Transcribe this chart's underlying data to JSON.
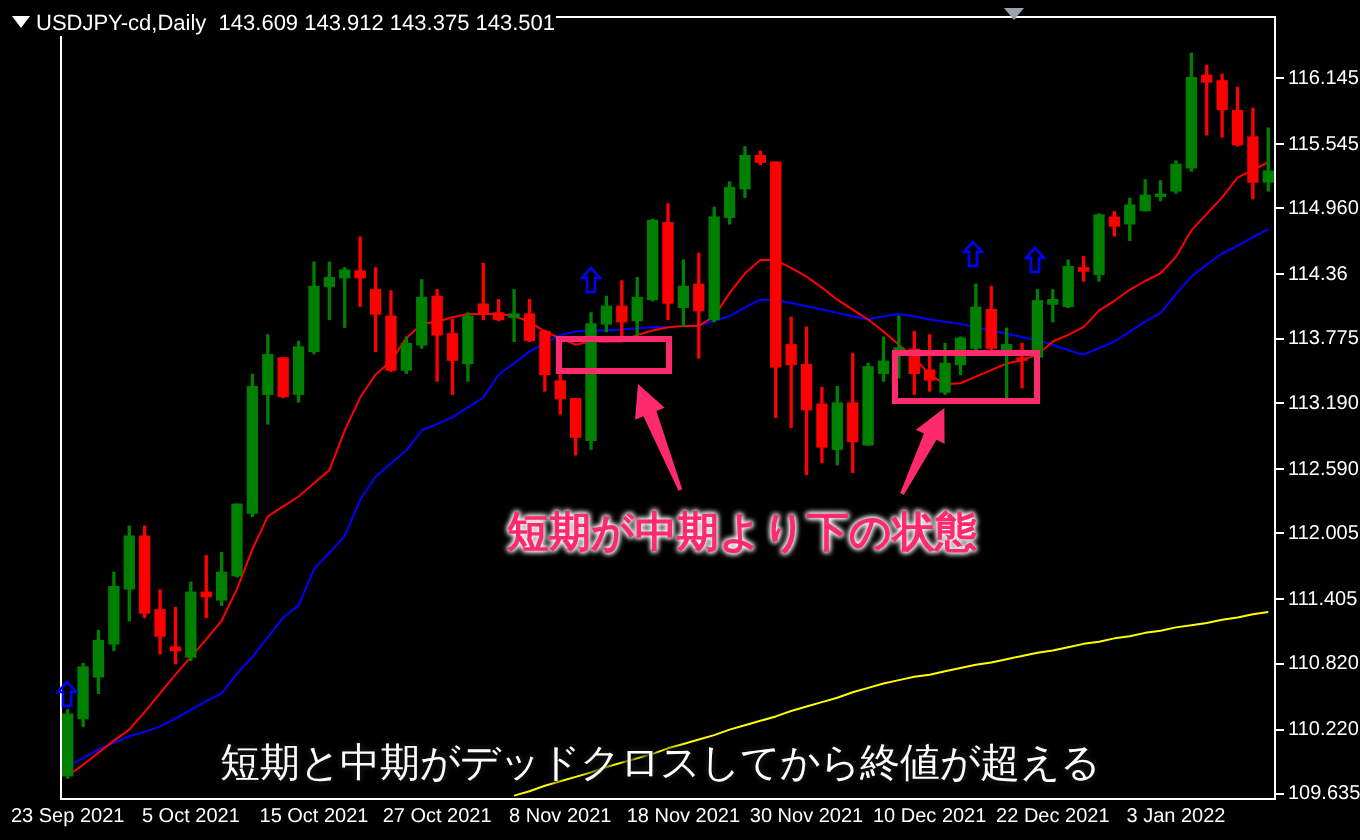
{
  "chart_data": {
    "type": "candlestick",
    "title": "USDJPY-cd,Daily  143.609 143.912 143.375 143.501",
    "annotations": [
      "短期が中期より下の状態",
      "短期と中期がデッドクロスしてから終値が超える"
    ],
    "categories": [
      "23 Sep 2021",
      null,
      null,
      null,
      null,
      null,
      null,
      null,
      "5 Oct 2021",
      null,
      null,
      null,
      null,
      null,
      null,
      null,
      "15 Oct 2021",
      null,
      null,
      null,
      null,
      null,
      null,
      null,
      "27 Oct 2021",
      null,
      null,
      null,
      null,
      null,
      null,
      null,
      "8 Nov 2021",
      null,
      null,
      null,
      null,
      null,
      null,
      null,
      "18 Nov 2021",
      null,
      null,
      null,
      null,
      null,
      null,
      null,
      "30 Nov 2021",
      null,
      null,
      null,
      null,
      null,
      null,
      null,
      "10 Dec 2021",
      null,
      null,
      null,
      null,
      null,
      null,
      null,
      "22 Dec 2021",
      null,
      null,
      null,
      null,
      null,
      null,
      null,
      "3 Jan 2022",
      null,
      null,
      null,
      null,
      null,
      null
    ],
    "ohlc": [
      [
        109.8,
        110.4,
        109.78,
        110.36
      ],
      [
        110.32,
        110.82,
        110.25,
        110.79
      ],
      [
        110.7,
        111.12,
        110.55,
        111.03
      ],
      [
        111.0,
        111.65,
        110.94,
        111.52
      ],
      [
        111.5,
        112.07,
        111.21,
        111.98
      ],
      [
        111.98,
        112.07,
        111.24,
        111.28
      ],
      [
        111.31,
        111.49,
        110.91,
        111.07
      ],
      [
        110.97,
        111.33,
        110.82,
        110.94
      ],
      [
        110.88,
        111.56,
        110.85,
        111.47
      ],
      [
        111.47,
        111.8,
        111.24,
        111.43
      ],
      [
        111.4,
        111.83,
        111.35,
        111.65
      ],
      [
        111.62,
        112.27,
        111.61,
        112.27
      ],
      [
        112.19,
        113.45,
        112.16,
        113.34
      ],
      [
        113.27,
        113.81,
        113.0,
        113.63
      ],
      [
        113.6,
        113.6,
        113.24,
        113.25
      ],
      [
        113.27,
        113.75,
        113.2,
        113.7
      ],
      [
        113.66,
        114.47,
        113.64,
        114.25
      ],
      [
        114.25,
        114.47,
        113.95,
        114.33
      ],
      [
        114.33,
        114.42,
        113.88,
        114.4
      ],
      [
        114.39,
        114.7,
        114.07,
        114.33
      ],
      [
        114.22,
        114.42,
        113.66,
        114.0
      ],
      [
        113.98,
        114.21,
        113.48,
        113.49
      ],
      [
        113.49,
        113.79,
        113.46,
        113.73
      ],
      [
        113.72,
        114.31,
        113.69,
        114.15
      ],
      [
        114.16,
        114.22,
        113.39,
        113.81
      ],
      [
        113.82,
        113.95,
        113.27,
        113.58
      ],
      [
        113.55,
        114.01,
        113.39,
        113.98
      ],
      [
        114.09,
        114.46,
        113.95,
        114.01
      ],
      [
        114.01,
        114.13,
        113.94,
        113.95
      ],
      [
        113.97,
        114.22,
        113.75,
        114.0
      ],
      [
        114.0,
        114.13,
        113.75,
        113.76
      ],
      [
        113.84,
        113.85,
        113.3,
        113.45
      ],
      [
        113.39,
        113.45,
        113.09,
        113.23
      ],
      [
        113.23,
        113.23,
        112.72,
        112.88
      ],
      [
        112.85,
        114.01,
        112.77,
        113.91
      ],
      [
        113.91,
        114.16,
        113.84,
        114.07
      ],
      [
        114.07,
        114.3,
        113.78,
        113.93
      ],
      [
        113.94,
        114.33,
        113.78,
        114.15
      ],
      [
        114.13,
        114.86,
        114.12,
        114.85
      ],
      [
        114.83,
        115.0,
        113.95,
        114.1
      ],
      [
        114.06,
        114.49,
        113.89,
        114.25
      ],
      [
        114.27,
        114.55,
        113.6,
        114.03
      ],
      [
        113.95,
        114.97,
        113.93,
        114.88
      ],
      [
        114.88,
        115.2,
        114.82,
        115.15
      ],
      [
        115.14,
        115.52,
        115.06,
        115.44
      ],
      [
        115.44,
        115.48,
        115.36,
        115.38
      ],
      [
        115.38,
        115.38,
        113.06,
        113.52
      ],
      [
        113.72,
        113.97,
        112.97,
        113.54
      ],
      [
        113.54,
        113.88,
        112.54,
        113.13
      ],
      [
        113.18,
        113.33,
        112.65,
        112.79
      ],
      [
        112.77,
        113.34,
        112.63,
        113.19
      ],
      [
        113.19,
        113.64,
        112.56,
        112.84
      ],
      [
        112.81,
        113.55,
        112.81,
        113.52
      ],
      [
        113.46,
        113.79,
        113.39,
        113.57
      ],
      [
        113.66,
        113.98,
        113.42,
        113.69
      ],
      [
        113.68,
        113.84,
        113.27,
        113.46
      ],
      [
        113.49,
        113.81,
        113.3,
        113.4
      ],
      [
        113.29,
        113.73,
        113.27,
        113.55
      ],
      [
        113.54,
        113.79,
        113.45,
        113.78
      ],
      [
        113.69,
        114.27,
        113.67,
        114.06
      ],
      [
        114.04,
        114.25,
        113.66,
        113.69
      ],
      [
        113.67,
        113.87,
        113.23,
        113.72
      ],
      [
        113.6,
        113.73,
        113.33,
        113.58
      ],
      [
        113.61,
        114.22,
        113.6,
        114.12
      ],
      [
        114.09,
        114.22,
        113.93,
        114.13
      ],
      [
        114.07,
        114.49,
        114.06,
        114.43
      ],
      [
        114.42,
        114.52,
        114.3,
        114.39
      ],
      [
        114.36,
        114.91,
        114.3,
        114.9
      ],
      [
        114.88,
        114.93,
        114.71,
        114.8
      ],
      [
        114.82,
        115.05,
        114.67,
        114.99
      ],
      [
        114.94,
        115.22,
        114.94,
        115.08
      ],
      [
        115.07,
        115.21,
        115.03,
        115.09
      ],
      [
        115.12,
        115.39,
        115.1,
        115.36
      ],
      [
        115.33,
        116.37,
        115.3,
        116.15
      ],
      [
        116.17,
        116.26,
        115.63,
        116.11
      ],
      [
        116.12,
        116.18,
        115.61,
        115.86
      ],
      [
        115.85,
        116.06,
        115.53,
        115.54
      ],
      [
        115.61,
        115.87,
        115.05,
        115.2
      ],
      [
        115.2,
        115.69,
        115.12,
        115.3
      ]
    ],
    "colors": [
      "#008000",
      "#008000",
      "#008000",
      "#008000",
      "#008000",
      "#ff0000",
      "#ff0000",
      "#ff0000",
      "#008000",
      "#ff0000",
      "#008000",
      "#008000",
      "#008000",
      "#008000",
      "#ff0000",
      "#008000",
      "#008000",
      "#008000",
      "#008000",
      "#ff0000",
      "#ff0000",
      "#ff0000",
      "#008000",
      "#008000",
      "#ff0000",
      "#ff0000",
      "#008000",
      "#ff0000",
      "#ff0000",
      "#008000",
      "#ff0000",
      "#ff0000",
      "#ff0000",
      "#ff0000",
      "#008000",
      "#008000",
      "#ff0000",
      "#008000",
      "#008000",
      "#ff0000",
      "#008000",
      "#ff0000",
      "#008000",
      "#008000",
      "#008000",
      "#ff0000",
      "#ff0000",
      "#ff0000",
      "#ff0000",
      "#ff0000",
      "#008000",
      "#ff0000",
      "#008000",
      "#008000",
      "#008000",
      "#ff0000",
      "#ff0000",
      "#008000",
      "#008000",
      "#008000",
      "#ff0000",
      "#008000",
      "#ff0000",
      "#008000",
      "#008000",
      "#008000",
      "#ff0000",
      "#008000",
      "#ff0000",
      "#008000",
      "#008000",
      "#008000",
      "#008000",
      "#008000",
      "#ff0000",
      "#ff0000",
      "#ff0000",
      "#ff0000",
      "#008000"
    ],
    "series": [
      {
        "type": "line",
        "color": "#ff0000",
        "values": [
          109.8,
          109.9,
          110.01,
          110.12,
          110.22,
          110.38,
          110.55,
          110.72,
          110.88,
          111.04,
          111.21,
          111.5,
          111.86,
          112.16,
          112.25,
          112.34,
          112.46,
          112.58,
          112.94,
          113.24,
          113.45,
          113.57,
          113.78,
          113.91,
          113.93,
          113.97,
          114.0,
          114.0,
          114.0,
          113.98,
          113.93,
          113.84,
          113.78,
          113.72,
          113.75,
          113.75,
          113.75,
          113.81,
          113.85,
          113.88,
          113.89,
          113.89,
          113.98,
          114.19,
          114.37,
          114.49,
          114.49,
          114.42,
          114.34,
          114.24,
          114.13,
          114.04,
          113.95,
          113.84,
          113.72,
          113.6,
          113.45,
          113.36,
          113.37,
          113.43,
          113.49,
          113.55,
          113.58,
          113.63,
          113.75,
          113.81,
          113.88,
          114.03,
          114.12,
          114.22,
          114.3,
          114.37,
          114.52,
          114.76,
          114.91,
          115.06,
          115.24,
          115.31,
          115.38
        ]
      },
      {
        "type": "line",
        "color": "#0000ff",
        "values": [
          109.89,
          109.96,
          110.04,
          110.1,
          110.16,
          110.2,
          110.25,
          110.32,
          110.4,
          110.48,
          110.55,
          110.73,
          110.88,
          111.06,
          111.24,
          111.35,
          111.68,
          111.83,
          111.98,
          112.31,
          112.52,
          112.64,
          112.76,
          112.94,
          113.0,
          113.06,
          113.15,
          113.24,
          113.45,
          113.55,
          113.66,
          113.73,
          113.81,
          113.84,
          113.85,
          113.85,
          113.86,
          113.87,
          113.88,
          113.88,
          null,
          113.89,
          113.94,
          113.98,
          114.06,
          114.13,
          114.13,
          114.1,
          114.07,
          114.04,
          114.01,
          113.98,
          113.95,
          113.98,
          114.0,
          113.98,
          113.95,
          113.93,
          113.91,
          113.88,
          113.85,
          113.82,
          113.79,
          113.76,
          113.72,
          113.67,
          113.63,
          113.69,
          113.75,
          113.84,
          113.93,
          114.01,
          114.18,
          114.34,
          114.45,
          114.55,
          114.62,
          114.7,
          114.77
        ]
      },
      {
        "type": "line",
        "color": "#ffff00",
        "values": [
          null,
          null,
          null,
          null,
          null,
          null,
          null,
          null,
          null,
          null,
          null,
          null,
          null,
          null,
          null,
          null,
          null,
          null,
          null,
          null,
          null,
          null,
          null,
          null,
          null,
          null,
          null,
          null,
          null,
          109.62,
          109.66,
          109.71,
          109.75,
          109.79,
          109.83,
          109.88,
          109.92,
          109.96,
          110.0,
          110.05,
          110.09,
          110.13,
          110.17,
          110.22,
          110.26,
          110.3,
          110.34,
          110.39,
          110.43,
          110.47,
          110.51,
          110.56,
          110.6,
          110.64,
          110.67,
          110.7,
          110.72,
          110.75,
          110.78,
          110.81,
          110.83,
          110.86,
          110.89,
          110.92,
          110.94,
          110.97,
          111.0,
          111.02,
          111.05,
          111.07,
          111.1,
          111.12,
          111.15,
          111.17,
          111.19,
          111.22,
          111.24,
          111.27,
          111.29
        ]
      }
    ],
    "ylim": [
      109.58,
      116.71
    ],
    "yticks": [
      {
        "value": 109.635,
        "label": "109.635"
      },
      {
        "value": 110.22,
        "label": "110.220"
      },
      {
        "value": 110.82,
        "label": "110.820"
      },
      111.405,
      112.005,
      {
        "value": 112.59,
        "label": "112.590"
      },
      {
        "value": 113.19,
        "label": "113.190"
      },
      113.775,
      114.36,
      {
        "value": 114.96,
        "label": "114.960"
      },
      115.545,
      116.145
    ]
  }
}
